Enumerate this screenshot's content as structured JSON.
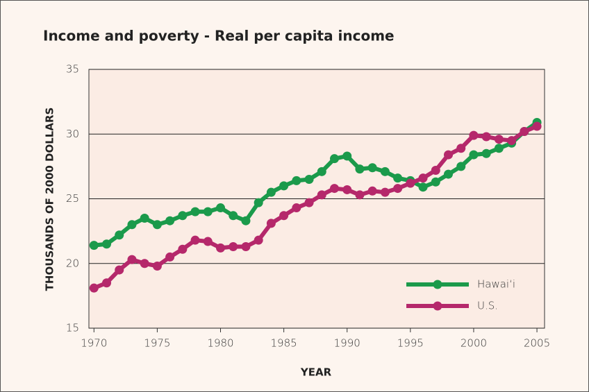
{
  "chart_data": {
    "type": "line",
    "title": "Income and poverty - Real per capita income",
    "x_label": "YEAR",
    "y_label": "THOUSANDS OF  2000 DOLLARS",
    "x": [
      1970,
      1971,
      1972,
      1973,
      1974,
      1975,
      1976,
      1977,
      1978,
      1979,
      1980,
      1981,
      1982,
      1983,
      1984,
      1985,
      1986,
      1987,
      1988,
      1989,
      1990,
      1991,
      1992,
      1993,
      1994,
      1995,
      1996,
      1997,
      1998,
      1999,
      2000,
      2001,
      2002,
      2003,
      2004,
      2005
    ],
    "series": [
      {
        "name": "Hawai‘i",
        "color": "#1b9a4b",
        "values": [
          21.4,
          21.5,
          22.2,
          23.0,
          23.5,
          23.0,
          23.3,
          23.7,
          24.0,
          24.0,
          24.3,
          23.7,
          23.3,
          24.7,
          25.5,
          26.0,
          26.4,
          26.5,
          27.1,
          28.1,
          28.3,
          27.3,
          27.4,
          27.1,
          26.6,
          26.4,
          25.9,
          26.3,
          26.9,
          27.5,
          28.4,
          28.5,
          28.9,
          29.3,
          30.2,
          30.9
        ]
      },
      {
        "name": "U.S.",
        "color": "#b5286b",
        "values": [
          18.1,
          18.5,
          19.5,
          20.3,
          20.0,
          19.8,
          20.5,
          21.1,
          21.8,
          21.7,
          21.2,
          21.3,
          21.3,
          21.8,
          23.1,
          23.7,
          24.3,
          24.7,
          25.3,
          25.8,
          25.7,
          25.3,
          25.6,
          25.5,
          25.8,
          26.2,
          26.6,
          27.2,
          28.4,
          28.9,
          29.9,
          29.8,
          29.6,
          29.5,
          30.2,
          30.6
        ]
      }
    ],
    "xlim": [
      1969.6,
      2005.6
    ],
    "xticks": [
      1970,
      1975,
      1980,
      1985,
      1990,
      1995,
      2000,
      2005
    ],
    "ylim": [
      15,
      35
    ],
    "yticks": [
      15,
      20,
      25,
      30,
      35
    ],
    "grid": true,
    "legend": "lower right"
  }
}
